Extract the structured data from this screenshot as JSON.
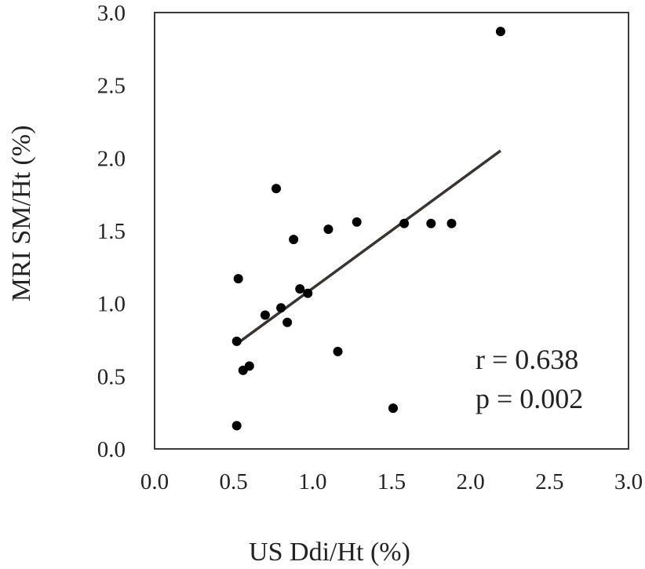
{
  "chart_data": {
    "type": "scatter",
    "xlabel": "US Ddi/Ht (%)",
    "ylabel": "MRI SM/Ht (%)",
    "xlim": [
      0.0,
      3.0
    ],
    "ylim": [
      0.0,
      3.0
    ],
    "x_ticks": [
      "0.0",
      "0.5",
      "1.0",
      "1.5",
      "2.0",
      "2.5",
      "3.0"
    ],
    "y_ticks": [
      "0.0",
      "0.5",
      "1.0",
      "1.5",
      "2.0",
      "2.5",
      "3.0"
    ],
    "grid": false,
    "legend": "none",
    "point_color": "#000000",
    "trendline_color": "#3a3431",
    "series": [
      {
        "points": [
          {
            "x": 0.52,
            "y": 0.16
          },
          {
            "x": 0.52,
            "y": 0.74
          },
          {
            "x": 0.53,
            "y": 1.17
          },
          {
            "x": 0.56,
            "y": 0.54
          },
          {
            "x": 0.6,
            "y": 0.57
          },
          {
            "x": 0.7,
            "y": 0.92
          },
          {
            "x": 0.77,
            "y": 1.79
          },
          {
            "x": 0.8,
            "y": 0.97
          },
          {
            "x": 0.84,
            "y": 0.87
          },
          {
            "x": 0.88,
            "y": 1.44
          },
          {
            "x": 0.92,
            "y": 1.1
          },
          {
            "x": 0.97,
            "y": 1.07
          },
          {
            "x": 1.1,
            "y": 1.51
          },
          {
            "x": 1.16,
            "y": 0.67
          },
          {
            "x": 1.28,
            "y": 1.56
          },
          {
            "x": 1.51,
            "y": 0.28
          },
          {
            "x": 1.58,
            "y": 1.55
          },
          {
            "x": 1.75,
            "y": 1.55
          },
          {
            "x": 1.88,
            "y": 1.55
          },
          {
            "x": 2.19,
            "y": 2.87
          }
        ]
      }
    ],
    "trendline": {
      "x": [
        0.53,
        2.19
      ],
      "y": [
        0.73,
        2.05
      ]
    },
    "annotations": {
      "r": "r = 0.638",
      "p": "p = 0.002"
    }
  }
}
